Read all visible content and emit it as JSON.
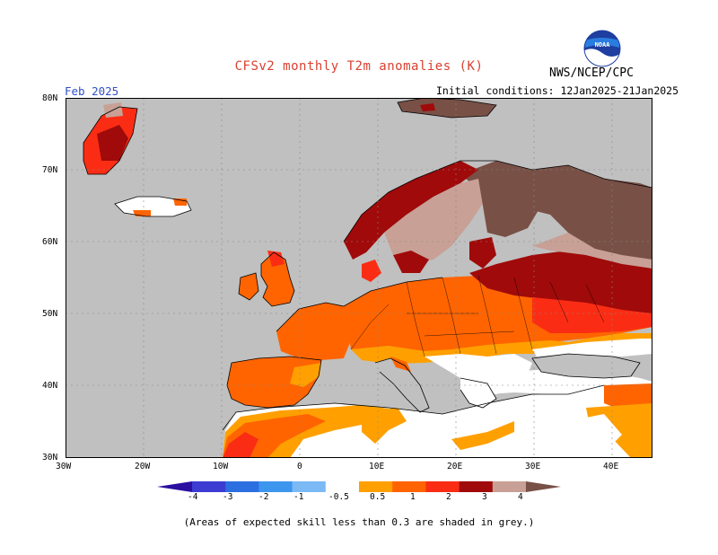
{
  "title": "CFSv2 monthly T2m anomalies (K)",
  "organization": "NWS/NCEP/CPC",
  "logo_text": "NOAA",
  "valid_month": "Feb 2025",
  "initial_conditions": "Initial conditions: 12Jan2025-21Jan2025",
  "footnote": "(Areas of expected skill less than 0.3 are shaded in grey.)",
  "axes": {
    "lon_labels": [
      "30W",
      "20W",
      "10W",
      "0",
      "10E",
      "20E",
      "30E",
      "40E"
    ],
    "lat_labels": [
      "80N",
      "70N",
      "60N",
      "50N",
      "40N",
      "30N"
    ]
  },
  "colorbar": {
    "labels": [
      "-4",
      "-3",
      "-2",
      "-1",
      "-0.5",
      "0.5",
      "1",
      "2",
      "3",
      "4"
    ],
    "colors": [
      "#2a0fa0",
      "#3c3cd2",
      "#2c6fe0",
      "#3d96ee",
      "#7bbaf5",
      "#ffffff",
      "#ffa000",
      "#ff6400",
      "#fa2d14",
      "#a00a0a",
      "#c8a096",
      "#785046"
    ]
  },
  "map_colors": {
    "ocean_grey": "#c0c0c0",
    "low_skill": "#c0c0c0",
    "neutral": "#ffffff",
    "a05_1": "#ffa000",
    "a1_2": "#ff6400",
    "a2_3": "#fa2d14",
    "a3_4": "#a00a0a",
    "a4_plus": "#c8a096",
    "a_max": "#785046"
  }
}
